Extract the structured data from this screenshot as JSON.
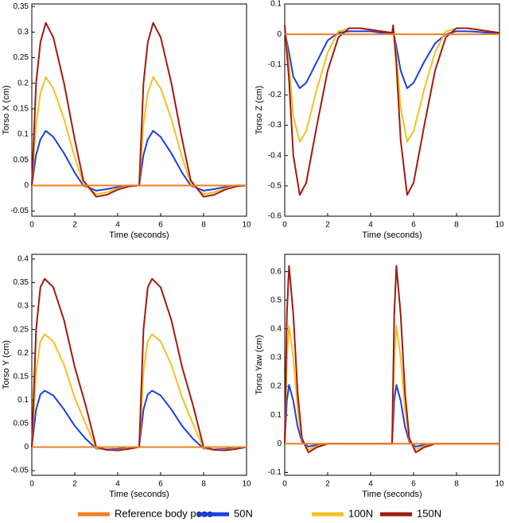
{
  "chart_data": [
    {
      "type": "line",
      "ylabel": "Torso X (cm)",
      "xlabel": "Time (seconds)",
      "x": [
        0,
        0.2,
        0.4,
        0.65,
        1,
        1.5,
        2,
        2.4,
        3,
        3.5,
        4,
        4.5,
        5,
        5.2,
        5.4,
        5.65,
        6,
        6.5,
        7,
        7.4,
        8,
        8.5,
        9,
        9.5,
        10
      ],
      "xlim": [
        0,
        10
      ],
      "xticks": [
        0,
        2,
        4,
        6,
        8,
        10
      ],
      "ylim": [
        -0.06,
        0.355
      ],
      "yticks": [
        -0.05,
        0,
        0.05,
        0.1,
        0.15,
        0.2,
        0.25,
        0.3,
        0.35
      ],
      "series": [
        {
          "name": "Reference body pose",
          "color": "#f08020",
          "values": [
            0,
            0,
            0,
            0,
            0,
            0,
            0,
            0,
            0,
            0,
            0,
            0,
            0,
            0,
            0,
            0,
            0,
            0,
            0,
            0,
            0,
            0,
            0,
            0,
            0
          ]
        },
        {
          "name": "50N",
          "color": "#1a3fe0",
          "values": [
            0,
            0.06,
            0.09,
            0.107,
            0.095,
            0.063,
            0.025,
            0,
            -0.01,
            -0.007,
            -0.003,
            0,
            0,
            0.06,
            0.09,
            0.107,
            0.095,
            0.063,
            0.025,
            0,
            -0.01,
            -0.007,
            -0.003,
            0,
            0
          ]
        },
        {
          "name": "100N",
          "color": "#f5c020",
          "values": [
            0,
            0.12,
            0.18,
            0.212,
            0.19,
            0.13,
            0.055,
            0.004,
            -0.017,
            -0.013,
            -0.006,
            -0.001,
            0,
            0.12,
            0.18,
            0.212,
            0.19,
            0.13,
            0.055,
            0.004,
            -0.017,
            -0.013,
            -0.006,
            -0.001,
            0
          ]
        },
        {
          "name": "150N",
          "color": "#a01a10",
          "values": [
            0,
            0.2,
            0.28,
            0.318,
            0.29,
            0.2,
            0.09,
            0.01,
            -0.022,
            -0.018,
            -0.008,
            -0.002,
            0,
            0.2,
            0.28,
            0.318,
            0.29,
            0.2,
            0.09,
            0.01,
            -0.022,
            -0.018,
            -0.008,
            -0.002,
            0
          ]
        }
      ]
    },
    {
      "type": "line",
      "ylabel": "Torso Z (cm)",
      "xlabel": "Time (seconds)",
      "x": [
        0,
        0.2,
        0.4,
        0.7,
        1,
        1.5,
        2,
        2.5,
        3,
        3.5,
        4,
        4.5,
        5,
        5.05,
        5.2,
        5.4,
        5.7,
        6,
        6.5,
        7,
        7.5,
        8,
        8.5,
        9,
        9.5,
        10
      ],
      "xlim": [
        0,
        10
      ],
      "xticks": [
        0,
        2,
        4,
        6,
        8,
        10
      ],
      "ylim": [
        -0.6,
        0.1
      ],
      "yticks": [
        -0.6,
        -0.5,
        -0.4,
        -0.3,
        -0.2,
        -0.1,
        0,
        0.1
      ],
      "series": [
        {
          "name": "Reference body pose",
          "color": "#f08020",
          "values": [
            0,
            0,
            0,
            0,
            0,
            0,
            0,
            0,
            0,
            0,
            0,
            0,
            0,
            0,
            0,
            0,
            0,
            0,
            0,
            0,
            0,
            0,
            0,
            0,
            0,
            0
          ]
        },
        {
          "name": "50N",
          "color": "#1a3fe0",
          "values": [
            0.01,
            -0.06,
            -0.14,
            -0.178,
            -0.16,
            -0.09,
            -0.02,
            0.005,
            0.01,
            0.01,
            0.01,
            0.005,
            0.003,
            0.01,
            -0.04,
            -0.12,
            -0.178,
            -0.16,
            -0.09,
            -0.03,
            0,
            0.01,
            0.01,
            0.008,
            0.005,
            0.003
          ]
        },
        {
          "name": "100N",
          "color": "#f5c020",
          "values": [
            0.02,
            -0.1,
            -0.27,
            -0.355,
            -0.32,
            -0.18,
            -0.06,
            0.01,
            0.02,
            0.02,
            0.015,
            0.01,
            0.005,
            0.02,
            -0.07,
            -0.24,
            -0.355,
            -0.32,
            -0.18,
            -0.06,
            0.01,
            0.02,
            0.02,
            0.015,
            0.01,
            0.005
          ]
        },
        {
          "name": "150N",
          "color": "#a01a10",
          "values": [
            0.03,
            -0.15,
            -0.4,
            -0.53,
            -0.49,
            -0.3,
            -0.12,
            -0.01,
            0.02,
            0.02,
            0.015,
            0.01,
            0.005,
            0.03,
            -0.1,
            -0.35,
            -0.53,
            -0.49,
            -0.3,
            -0.12,
            -0.01,
            0.02,
            0.02,
            0.015,
            0.01,
            0.005
          ]
        }
      ]
    },
    {
      "type": "line",
      "ylabel": "Torso Y (cm)",
      "xlabel": "Time (seconds)",
      "x": [
        0,
        0.2,
        0.4,
        0.6,
        1,
        1.5,
        2,
        2.5,
        3,
        3.5,
        4,
        4.5,
        5,
        5.2,
        5.4,
        5.6,
        6,
        6.5,
        7,
        7.5,
        8,
        8.5,
        9,
        9.5,
        10
      ],
      "xlim": [
        0,
        10
      ],
      "xticks": [
        0,
        2,
        4,
        6,
        8,
        10
      ],
      "ylim": [
        -0.06,
        0.41
      ],
      "yticks": [
        -0.05,
        0,
        0.05,
        0.1,
        0.15,
        0.2,
        0.25,
        0.3,
        0.35,
        0.4
      ],
      "series": [
        {
          "name": "Reference body pose",
          "color": "#f08020",
          "values": [
            0,
            0,
            0,
            0,
            0,
            0,
            0,
            0,
            0,
            0,
            0,
            0,
            0,
            0,
            0,
            0,
            0,
            0,
            0,
            0,
            0,
            0,
            0,
            0,
            0
          ]
        },
        {
          "name": "50N",
          "color": "#1a3fe0",
          "values": [
            0,
            0.08,
            0.112,
            0.12,
            0.11,
            0.08,
            0.045,
            0.018,
            -0.003,
            -0.005,
            -0.004,
            -0.002,
            0,
            0.08,
            0.112,
            0.12,
            0.11,
            0.08,
            0.045,
            0.018,
            -0.003,
            -0.005,
            -0.004,
            -0.002,
            0
          ]
        },
        {
          "name": "100N",
          "color": "#f5c020",
          "values": [
            0,
            0.16,
            0.225,
            0.24,
            0.225,
            0.175,
            0.105,
            0.05,
            -0.002,
            -0.006,
            -0.006,
            -0.003,
            0,
            0.16,
            0.225,
            0.24,
            0.225,
            0.175,
            0.105,
            0.05,
            -0.002,
            -0.006,
            -0.006,
            -0.003,
            0
          ]
        },
        {
          "name": "150N",
          "color": "#a01a10",
          "values": [
            0,
            0.25,
            0.34,
            0.358,
            0.34,
            0.27,
            0.17,
            0.09,
            0,
            -0.006,
            -0.007,
            -0.004,
            0,
            0.25,
            0.34,
            0.358,
            0.34,
            0.27,
            0.17,
            0.09,
            0,
            -0.006,
            -0.007,
            -0.004,
            0
          ]
        }
      ]
    },
    {
      "type": "line",
      "ylabel": "Torso Yaw (cm)",
      "xlabel": "Time (seconds)",
      "x": [
        0,
        0.1,
        0.2,
        0.4,
        0.6,
        0.8,
        1.1,
        1.5,
        2,
        3,
        4,
        5,
        5.1,
        5.2,
        5.4,
        5.6,
        5.8,
        6.1,
        6.5,
        7,
        8,
        9,
        10
      ],
      "xlim": [
        0,
        10
      ],
      "xticks": [
        0,
        2,
        4,
        6,
        8,
        10
      ],
      "ylim": [
        -0.11,
        0.66
      ],
      "yticks": [
        -0.1,
        0,
        0.1,
        0.2,
        0.3,
        0.4,
        0.5,
        0.6
      ],
      "series": [
        {
          "name": "Reference body pose",
          "color": "#f08020",
          "values": [
            0,
            0,
            0,
            0,
            0,
            0,
            0,
            0,
            0,
            0,
            0,
            0,
            0,
            0,
            0,
            0,
            0,
            0,
            0,
            0,
            0,
            0,
            0
          ]
        },
        {
          "name": "50N",
          "color": "#1a3fe0",
          "values": [
            0,
            0.15,
            0.205,
            0.15,
            0.06,
            0.007,
            -0.01,
            -0.004,
            0,
            0,
            0,
            0,
            0.15,
            0.205,
            0.15,
            0.06,
            0.007,
            -0.01,
            -0.004,
            0,
            0,
            0,
            0
          ]
        },
        {
          "name": "100N",
          "color": "#f5c020",
          "values": [
            0,
            0.3,
            0.41,
            0.3,
            0.12,
            0.013,
            -0.02,
            -0.008,
            0,
            0,
            0,
            0,
            0.3,
            0.41,
            0.3,
            0.12,
            0.013,
            -0.02,
            -0.008,
            0,
            0,
            0,
            0
          ]
        },
        {
          "name": "150N",
          "color": "#a01a10",
          "values": [
            0,
            0.45,
            0.62,
            0.45,
            0.18,
            0.02,
            -0.03,
            -0.012,
            0,
            0,
            0,
            0,
            0.45,
            0.62,
            0.45,
            0.18,
            0.02,
            -0.03,
            -0.012,
            0,
            0,
            0,
            0
          ]
        }
      ]
    }
  ]
}
